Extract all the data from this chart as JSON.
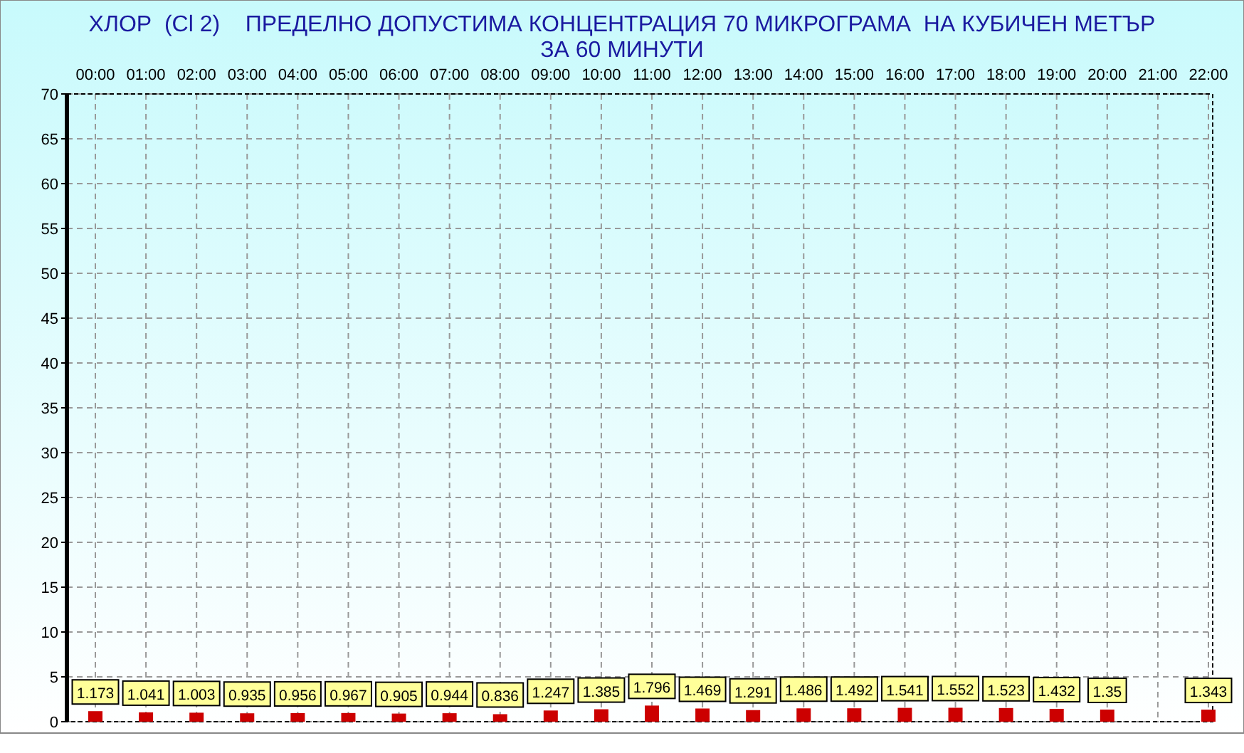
{
  "chart_data": {
    "type": "bar",
    "title": "ХЛОР  (Cl 2)    ПРЕДЕЛНО ДОПУСТИМА КОНЦЕНТРАЦИЯ 70 МИКРОГРАМА  НА КУБИЧЕН МЕТЪР",
    "subtitle": "ЗА 60 МИНУТИ",
    "categories": [
      "00:00",
      "01:00",
      "02:00",
      "03:00",
      "04:00",
      "05:00",
      "06:00",
      "07:00",
      "08:00",
      "09:00",
      "10:00",
      "11:00",
      "12:00",
      "13:00",
      "14:00",
      "15:00",
      "16:00",
      "17:00",
      "18:00",
      "19:00",
      "20:00",
      "21:00",
      "22:00"
    ],
    "values": [
      1.173,
      1.041,
      1.003,
      0.935,
      0.956,
      0.967,
      0.905,
      0.944,
      0.836,
      1.247,
      1.385,
      1.796,
      1.469,
      1.291,
      1.486,
      1.492,
      1.541,
      1.552,
      1.523,
      1.432,
      1.35,
      null,
      1.343
    ],
    "color": "#cc0000",
    "ylim": [
      0,
      70
    ],
    "yticks": [
      0,
      5,
      10,
      15,
      20,
      25,
      30,
      35,
      40,
      45,
      50,
      55,
      60,
      65,
      70
    ],
    "grid": true,
    "data_labels": true
  }
}
